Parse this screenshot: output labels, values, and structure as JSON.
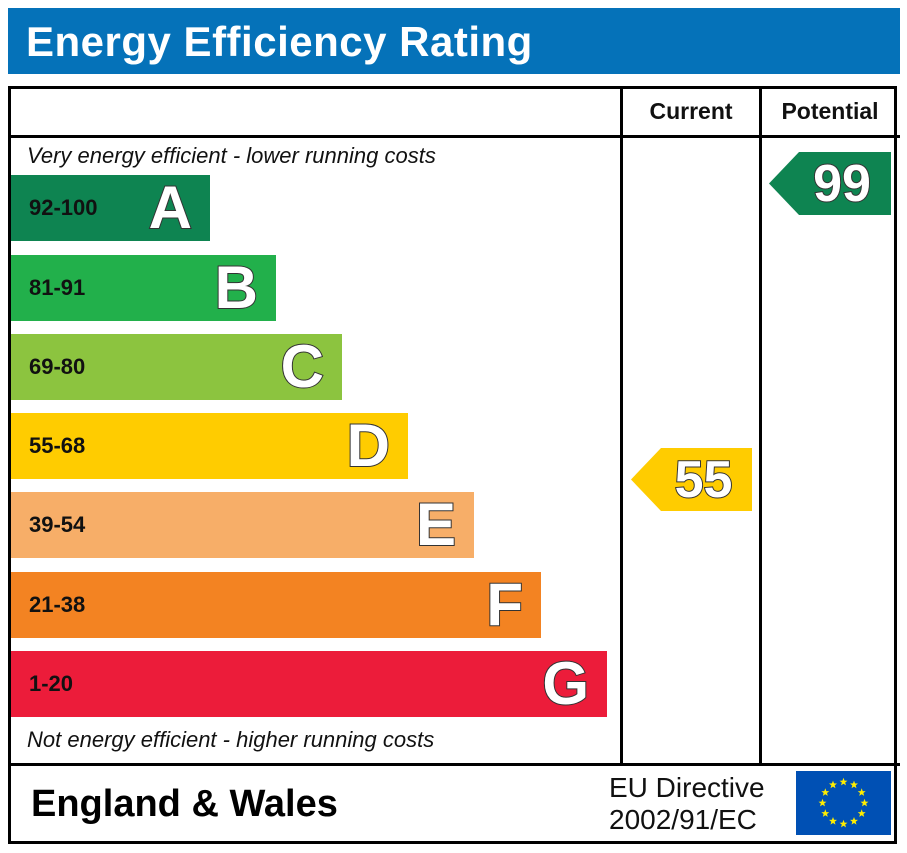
{
  "title": "Energy Efficiency Rating",
  "columns": {
    "current": "Current",
    "potential": "Potential"
  },
  "notes": {
    "top": "Very energy efficient - lower running costs",
    "bottom": "Not energy efficient - higher running costs"
  },
  "chart_data": {
    "type": "bar",
    "title": "Energy Efficiency Rating",
    "categories": [
      "A",
      "B",
      "C",
      "D",
      "E",
      "F",
      "G"
    ],
    "bands": [
      {
        "letter": "A",
        "range": "92-100",
        "color": "#0e8451",
        "range_color": "#111111"
      },
      {
        "letter": "B",
        "range": "81-91",
        "color": "#22b04b",
        "range_color": "#111111"
      },
      {
        "letter": "C",
        "range": "69-80",
        "color": "#8cc43f",
        "range_color": "#111111"
      },
      {
        "letter": "D",
        "range": "55-68",
        "color": "#ffcc00",
        "range_color": "#111111"
      },
      {
        "letter": "E",
        "range": "39-54",
        "color": "#f7ae68",
        "range_color": "#111111"
      },
      {
        "letter": "F",
        "range": "21-38",
        "color": "#f38322",
        "range_color": "#111111"
      },
      {
        "letter": "G",
        "range": "1-20",
        "color": "#ec1c3a",
        "range_color": "#111111"
      }
    ],
    "current": {
      "value": "55",
      "band": "D",
      "color": "#ffcc00"
    },
    "potential": {
      "value": "99",
      "band": "A",
      "color": "#0e8451"
    }
  },
  "footer": {
    "region": "England & Wales",
    "directive_line1": "EU Directive",
    "directive_line2": "2002/91/EC"
  },
  "flag": {
    "background": "#0050b4",
    "stars": "#ffed00"
  }
}
